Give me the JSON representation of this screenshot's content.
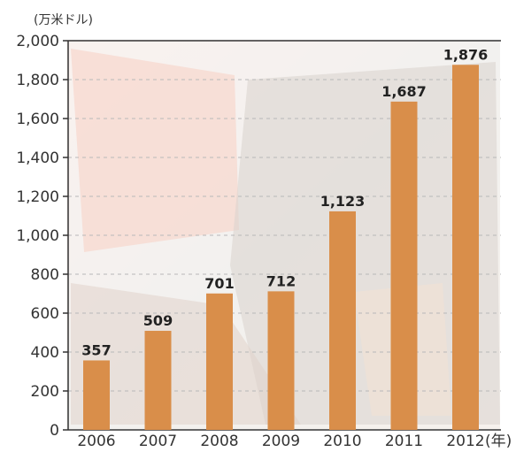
{
  "chart_data": {
    "type": "bar",
    "title": "",
    "unit_label": "(万米ドル)",
    "x_unit_label": "(年)",
    "categories": [
      "2006",
      "2007",
      "2008",
      "2009",
      "2010",
      "2011",
      "2012"
    ],
    "values": [
      357,
      509,
      701,
      712,
      1123,
      1687,
      1876
    ],
    "data_labels": [
      "357",
      "509",
      "701",
      "712",
      "1,123",
      "1,687",
      "1,876"
    ],
    "ylim": [
      0,
      2000
    ],
    "yticks": [
      0,
      200,
      400,
      600,
      800,
      1000,
      1200,
      1400,
      1600,
      1800,
      2000
    ],
    "ytick_labels": [
      "0",
      "200",
      "400",
      "600",
      "800",
      "1,000",
      "1,200",
      "1,400",
      "1,600",
      "1,800",
      "2,000"
    ],
    "grid": true,
    "legend": "none",
    "colors": {
      "bar": "#d98e4a",
      "grid": "#b8b8b8",
      "axis": "#333333",
      "background_photo_tint": "#f3e4dc"
    }
  }
}
